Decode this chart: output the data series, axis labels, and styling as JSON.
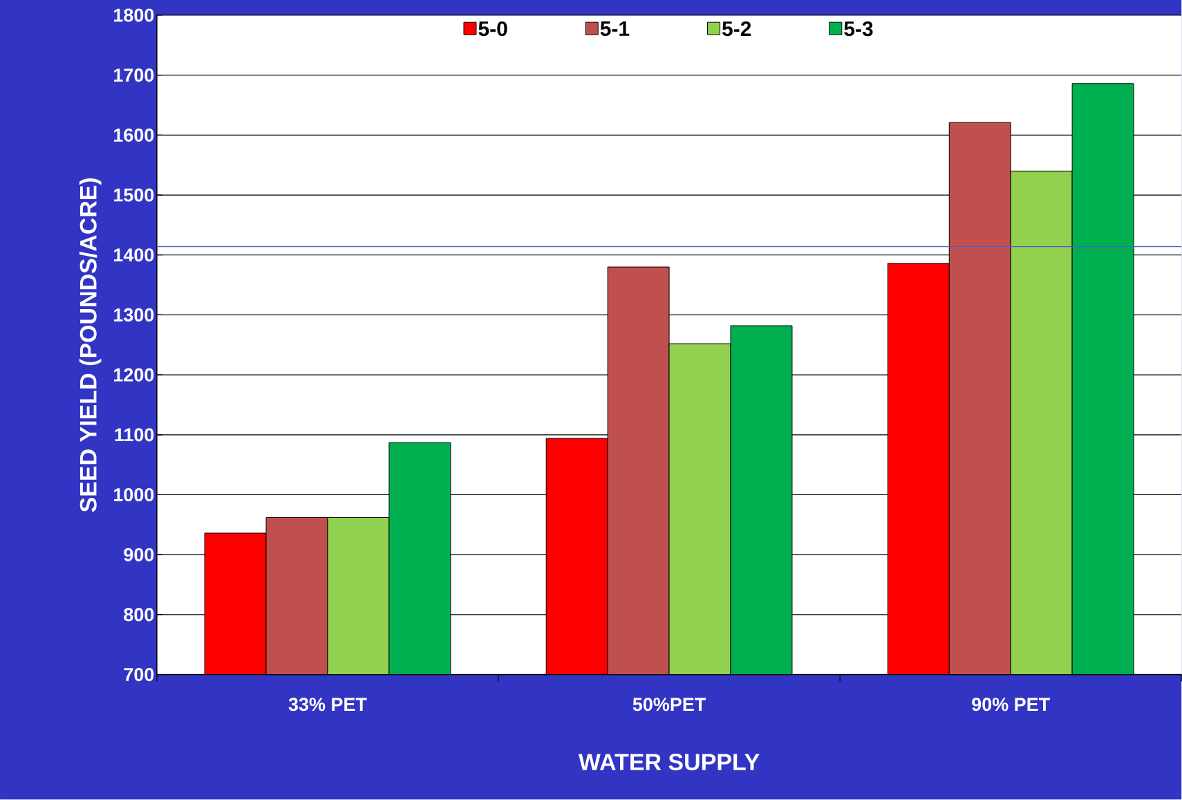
{
  "chart_data": {
    "type": "bar",
    "xlabel": "WATER SUPPLY",
    "ylabel": "SEED YIELD (POUNDS/ACRE)",
    "categories": [
      "33% PET",
      "50%PET",
      "90% PET"
    ],
    "series": [
      {
        "name": "5-0",
        "color": "#ff0000",
        "values": [
          936,
          1094,
          1386
        ]
      },
      {
        "name": "5-1",
        "color": "#c0504d",
        "values": [
          962,
          1380,
          1621
        ]
      },
      {
        "name": "5-2",
        "color": "#92d050",
        "values": [
          962,
          1252,
          1540
        ]
      },
      {
        "name": "5-3",
        "color": "#00b050",
        "values": [
          1087,
          1282,
          1686
        ]
      }
    ],
    "ylim": [
      700,
      1800
    ],
    "yticks": [
      700,
      800,
      900,
      1000,
      1100,
      1200,
      1300,
      1400,
      1500,
      1600,
      1700,
      1800
    ],
    "grid": "y",
    "legend": "top",
    "ref_lines": [
      {
        "axis": "y",
        "value": 1414,
        "color": "#4f5fc8"
      }
    ]
  }
}
